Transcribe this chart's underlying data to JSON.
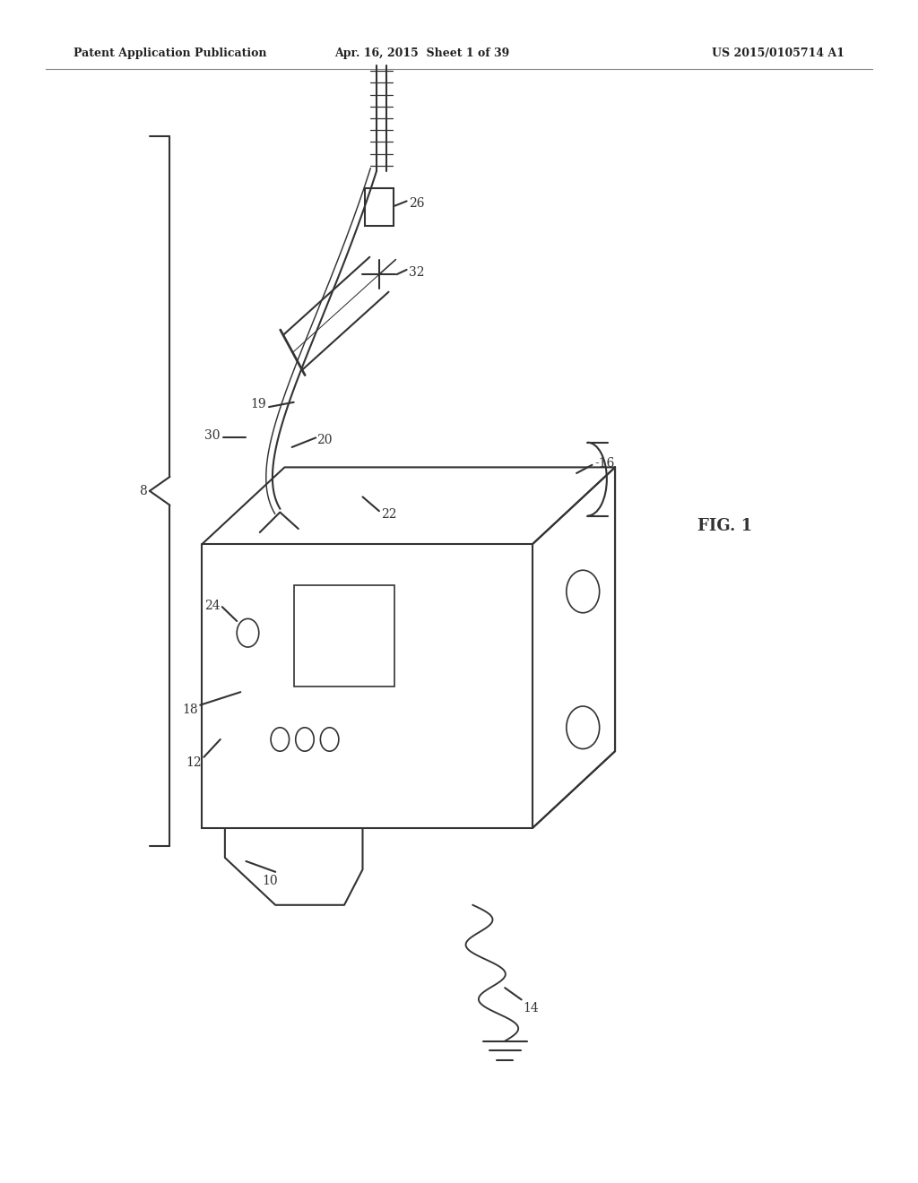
{
  "background_color": "#ffffff",
  "header_left": "Patent Application Publication",
  "header_center": "Apr. 16, 2015  Sheet 1 of 39",
  "header_right": "US 2015/0105714 A1",
  "fig_label": "FIG. 1",
  "line_color": "#333333",
  "line_width": 1.5
}
